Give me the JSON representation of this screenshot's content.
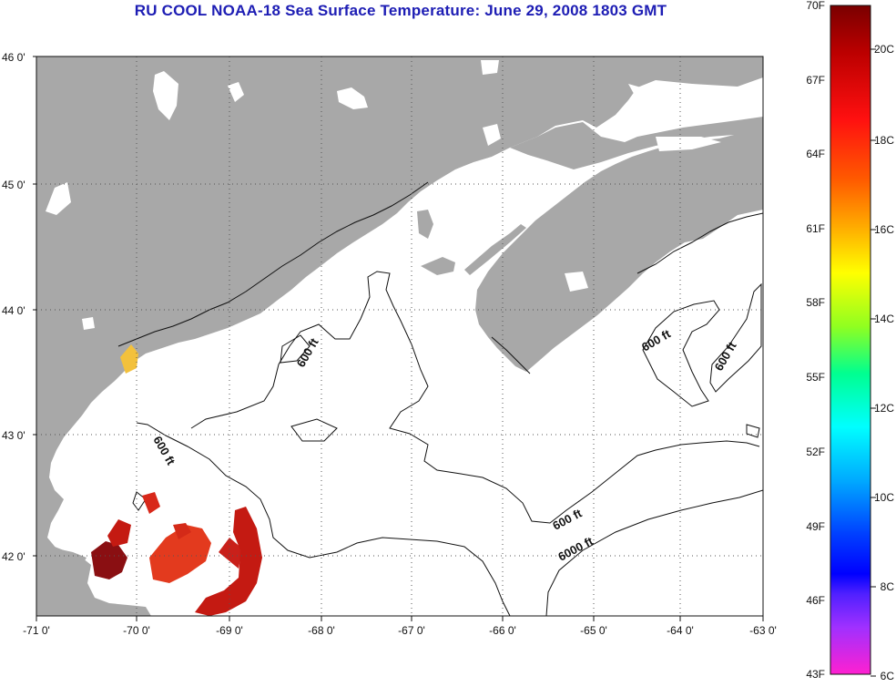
{
  "title": "RU COOL  NOAA-18  Sea Surface Temperature:  June 29, 2008 1803 GMT",
  "lon_ticks": [
    "-71 0'",
    "-70 0'",
    "-69 0'",
    "-68 0'",
    "-67 0'",
    "-66 0'",
    "-65 0'",
    "-64 0'",
    "-63 0'"
  ],
  "lat_ticks": [
    "46 0'",
    "45 0'",
    "44 0'",
    "43 0'",
    "42 0'"
  ],
  "contour_labels": [
    "600 ft",
    "600 ft",
    "600 ft",
    "600 ft",
    "600 ft",
    "6000 ft"
  ],
  "colorbar": {
    "fahrenheit": [
      "70F",
      "67F",
      "64F",
      "61F",
      "58F",
      "55F",
      "52F",
      "49F",
      "46F",
      "43F"
    ],
    "celsius": [
      "20C",
      "18C",
      "16C",
      "14C",
      "12C",
      "10C",
      "8C",
      "6C"
    ]
  },
  "colors": {
    "land": "#a8a8a8",
    "water": "#ffffff",
    "title": "#1d1db4",
    "sst_warm": "#c41a12",
    "sst_dark": "#8a0f12"
  }
}
